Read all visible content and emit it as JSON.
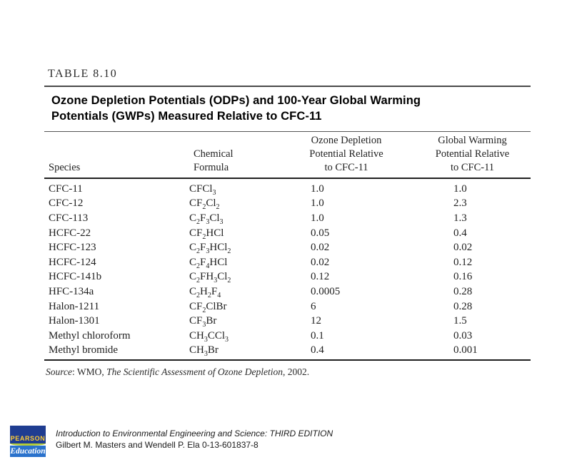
{
  "figure": {
    "label": "TABLE 8.10",
    "title_line1": "Ozone Depletion Potentials (ODPs) and 100-Year Global Warming",
    "title_line2": "Potentials (GWPs) Measured Relative to CFC-11",
    "header": {
      "species": [
        "Species"
      ],
      "formula": [
        "Chemical",
        "Formula"
      ],
      "odp": [
        "Ozone Depletion",
        "Potential Relative",
        "to CFC-11"
      ],
      "gwp": [
        "Global Warming",
        "Potential Relative",
        "to CFC-11"
      ]
    },
    "rows": [
      {
        "species": "CFC-11",
        "formula": "CFCl3",
        "odp": "1.0",
        "gwp": "1.0"
      },
      {
        "species": "CFC-12",
        "formula": "CF2Cl2",
        "odp": "1.0",
        "gwp": "2.3"
      },
      {
        "species": "CFC-113",
        "formula": "C2F3Cl3",
        "odp": "1.0",
        "gwp": "1.3"
      },
      {
        "species": "HCFC-22",
        "formula": "CF2HCl",
        "odp": "0.05",
        "gwp": "0.4"
      },
      {
        "species": "HCFC-123",
        "formula": "C2F3HCl2",
        "odp": "0.02",
        "gwp": "0.02"
      },
      {
        "species": "HCFC-124",
        "formula": "C2F4HCl",
        "odp": "0.02",
        "gwp": "0.12"
      },
      {
        "species": "HCFC-141b",
        "formula": "C2FH3Cl2",
        "odp": "0.12",
        "gwp": "0.16"
      },
      {
        "species": "HFC-134a",
        "formula": "C2H2F4",
        "odp": "0.0005",
        "gwp": "0.28"
      },
      {
        "species": "Halon-1211",
        "formula": "CF2ClBr",
        "odp": "6",
        "gwp": "0.28"
      },
      {
        "species": "Halon-1301",
        "formula": "CF3Br",
        "odp": "12",
        "gwp": "1.5"
      },
      {
        "species": "Methyl chloroform",
        "formula": "CH3CCl3",
        "odp": "0.1",
        "gwp": "0.03"
      },
      {
        "species": "Methyl bromide",
        "formula": "CH3Br",
        "odp": "0.4",
        "gwp": "0.001"
      }
    ],
    "source": {
      "label": "Source",
      "mid": ": WMO, ",
      "title": "The Scientific Assessment of Ozone Depletion",
      "end": ", 2002."
    }
  },
  "footer": {
    "logo_brand": "PEARSON",
    "logo_division": "Education",
    "line1": "Introduction to Environmental Engineering and Science: THIRD EDITION",
    "line2": "Gilbert M. Masters and Wendell P. Ela  0-13-601837-8"
  },
  "colors": {
    "logo_navy": "#1f3d91",
    "logo_blue": "#2a72cc",
    "logo_gold": "#ffcc33",
    "logo_green": "#b4cc35",
    "text": "#1c1c1c"
  }
}
